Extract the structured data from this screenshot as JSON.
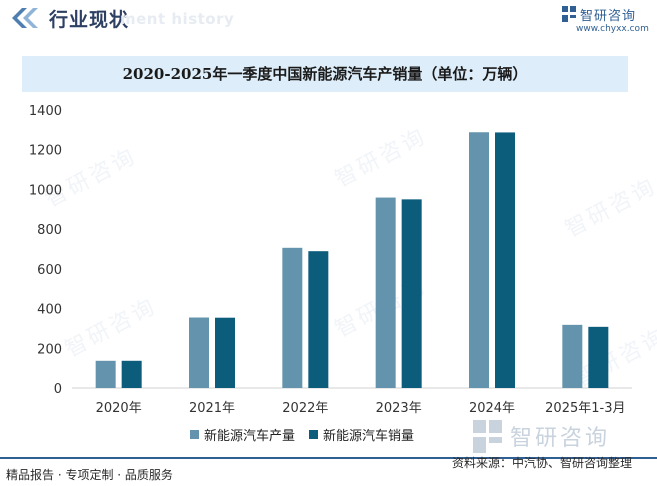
{
  "header": {
    "title": "行业现状",
    "subtitle": "ment history",
    "brand_name": "智研咨询",
    "brand_url": "www.chyxx.com"
  },
  "watermark": {
    "text": "智研咨询"
  },
  "legend": {
    "production": "新能源汽车产量",
    "sales": "新能源汽车销量"
  },
  "footer": {
    "left": "精品报告 · 专项定制 · 品质服务",
    "right": "资料来源：中汽协、智研咨询整理"
  },
  "colors": {
    "production": "#6494ad",
    "sales": "#0c5c7c",
    "accent": "#2f5f93",
    "title_band": "#ddeefa"
  },
  "chart_data": {
    "type": "bar",
    "title": "2020-2025年一季度中国新能源汽车产销量（单位：万辆）",
    "categories": [
      "2020年",
      "2021年",
      "2022年",
      "2023年",
      "2024年",
      "2025年1-3月"
    ],
    "series": [
      {
        "name": "新能源汽车产量",
        "values": [
          137,
          355,
          706,
          959,
          1288,
          318
        ]
      },
      {
        "name": "新能源汽车销量",
        "values": [
          137,
          354,
          689,
          950,
          1287,
          308
        ]
      }
    ],
    "yticks": [
      0,
      200,
      400,
      600,
      800,
      1000,
      1200,
      1400
    ],
    "ylim": [
      0,
      1400
    ],
    "xlabel": "",
    "ylabel": "",
    "legend_position": "bottom"
  }
}
